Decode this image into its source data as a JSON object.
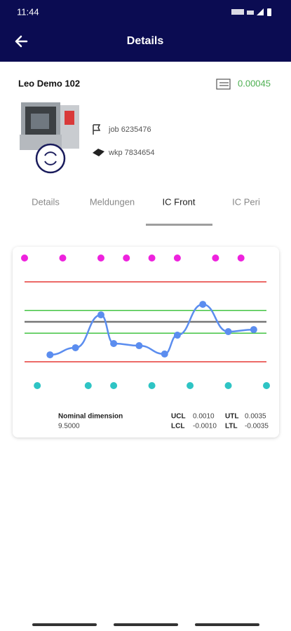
{
  "status_bar": {
    "time": "11:44"
  },
  "header": {
    "title": "Details"
  },
  "machine": {
    "name": "Leo Demo 102",
    "value": "0.00045",
    "job": "job 6235476",
    "wkp": "wkp 7834654"
  },
  "tabs": [
    "Details",
    "Meldungen",
    "IC Front",
    "IC Peri"
  ],
  "active_tab": 2,
  "chart_data": {
    "type": "line",
    "x": [
      2,
      4,
      6,
      7,
      9,
      11,
      12,
      14,
      16,
      18
    ],
    "series": [
      {
        "color": "#5b8def",
        "values": [
          -0.00289,
          -0.00227,
          0.00061,
          -0.0019,
          -0.00209,
          -0.00282,
          -0.00117,
          0.00153,
          -0.00086,
          -0.00068
        ]
      }
    ],
    "markers": [
      {
        "row": "top",
        "color": "#ee22dd",
        "x": [
          0,
          3,
          6,
          8,
          10,
          12,
          15,
          17
        ]
      },
      {
        "row": "bottom",
        "color": "#2ec4c4",
        "x": [
          1,
          5,
          7,
          10,
          13,
          16,
          19
        ]
      }
    ],
    "limits": [
      {
        "name": "UCL",
        "value": 0.001,
        "label": "0.0010",
        "color": "#43c443"
      },
      {
        "name": "UTL",
        "value": 0.0035,
        "label": "0.0035",
        "color": "#e53935"
      },
      {
        "name": "LCL",
        "value": -0.001,
        "label": "-0.0010",
        "color": "#43c443"
      },
      {
        "name": "LTL",
        "value": -0.0035,
        "label": "-0.0035",
        "color": "#e53935"
      }
    ],
    "nominal": {
      "name": "Nominal dimension",
      "label": "9.5000"
    }
  }
}
